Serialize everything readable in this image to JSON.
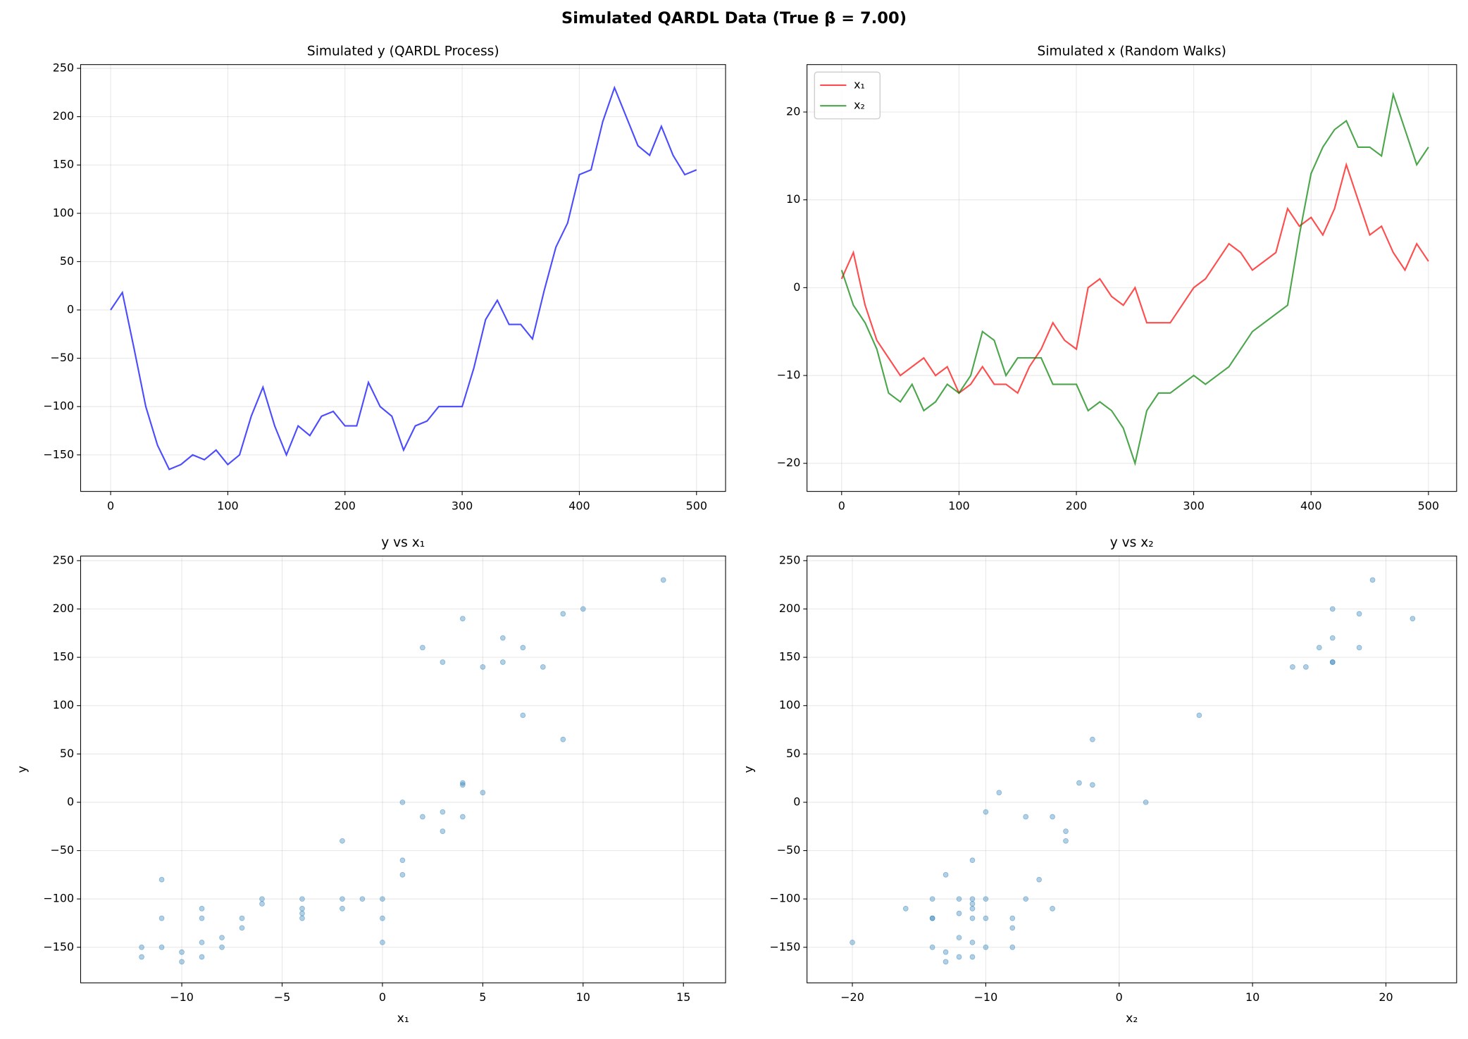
{
  "title": "Simulated QARDL Data (True β = 7.00)",
  "chart_data": [
    {
      "type": "line",
      "title": "Simulated y (QARDL Process)",
      "grid": true,
      "x": [
        0,
        10,
        20,
        30,
        40,
        50,
        60,
        70,
        80,
        90,
        100,
        110,
        120,
        130,
        140,
        150,
        160,
        170,
        180,
        190,
        200,
        210,
        220,
        230,
        240,
        250,
        260,
        270,
        280,
        290,
        300,
        310,
        320,
        330,
        340,
        350,
        360,
        370,
        380,
        390,
        400,
        410,
        420,
        430,
        440,
        450,
        460,
        470,
        480,
        490,
        500
      ],
      "series": [
        {
          "color": "#0000ff",
          "values": [
            0,
            18,
            -40,
            -100,
            -140,
            -165,
            -160,
            -150,
            -155,
            -145,
            -160,
            -150,
            -110,
            -80,
            -120,
            -150,
            -120,
            -130,
            -110,
            -105,
            -120,
            -120,
            -75,
            -100,
            -110,
            -145,
            -120,
            -115,
            -100,
            -100,
            -100,
            -60,
            -10,
            10,
            -15,
            -15,
            -30,
            20,
            65,
            90,
            140,
            145,
            195,
            230,
            200,
            170,
            160,
            190,
            160,
            140,
            145
          ]
        }
      ],
      "xlim": [
        -25.6,
        524.8
      ],
      "ylim": [
        -187.8,
        253.9
      ],
      "xticks": [
        0,
        100,
        200,
        300,
        400,
        500
      ],
      "yticks": [
        {
          "value": -150,
          "label": "−150"
        },
        {
          "value": -100,
          "label": "−100"
        },
        {
          "value": -50,
          "label": "−50"
        },
        0,
        50,
        100,
        150,
        200,
        250
      ]
    },
    {
      "type": "line",
      "title": "Simulated x (Random Walks)",
      "grid": true,
      "legend": "upper left",
      "x": [
        0,
        10,
        20,
        30,
        40,
        50,
        60,
        70,
        80,
        90,
        100,
        110,
        120,
        130,
        140,
        150,
        160,
        170,
        180,
        190,
        200,
        210,
        220,
        230,
        240,
        250,
        260,
        270,
        280,
        290,
        300,
        310,
        320,
        330,
        340,
        350,
        360,
        370,
        380,
        390,
        400,
        410,
        420,
        430,
        440,
        450,
        460,
        470,
        480,
        490,
        500
      ],
      "series": [
        {
          "name": "x₁",
          "color": "#ff0000",
          "values": [
            1,
            4,
            -2,
            -6,
            -8,
            -10,
            -9,
            -8,
            -10,
            -9,
            -12,
            -11,
            -9,
            -11,
            -11,
            -12,
            -9,
            -7,
            -4,
            -6,
            -7,
            0,
            1,
            -1,
            -2,
            0,
            -4,
            -4,
            -4,
            -2,
            0,
            1,
            3,
            5,
            4,
            2,
            3,
            4,
            9,
            7,
            8,
            6,
            9,
            14,
            10,
            6,
            7,
            4,
            2,
            5,
            3
          ]
        },
        {
          "name": "x₂",
          "color": "#008000",
          "values": [
            2,
            -2,
            -4,
            -7,
            -12,
            -13,
            -11,
            -14,
            -13,
            -11,
            -12,
            -10,
            -5,
            -6,
            -10,
            -8,
            -8,
            -8,
            -11,
            -11,
            -11,
            -14,
            -13,
            -14,
            -16,
            -20,
            -14,
            -12,
            -12,
            -11,
            -10,
            -11,
            -10,
            -9,
            -7,
            -5,
            -4,
            -3,
            -2,
            6,
            13,
            16,
            18,
            19,
            16,
            16,
            15,
            22,
            18,
            14,
            16
          ]
        }
      ],
      "xlim": [
        -29.5,
        524
      ],
      "ylim": [
        -23.2,
        25.4
      ],
      "xticks": [
        0,
        100,
        200,
        300,
        400,
        500
      ],
      "yticks": [
        {
          "value": -20,
          "label": "−20"
        },
        {
          "value": -10,
          "label": "−10"
        },
        0,
        10,
        20
      ]
    },
    {
      "type": "scatter",
      "title": "y vs x₁",
      "xlabel": "x₁",
      "ylabel": "y",
      "grid": true,
      "color": "#1f77b4",
      "x": [
        1,
        4,
        -2,
        -6,
        -8,
        -10,
        -9,
        -8,
        -10,
        -9,
        -12,
        -11,
        -9,
        -11,
        -11,
        -12,
        -9,
        -7,
        -4,
        -6,
        -7,
        0,
        1,
        -1,
        -2,
        0,
        -4,
        -4,
        -4,
        -2,
        0,
        1,
        3,
        5,
        4,
        2,
        3,
        4,
        9,
        7,
        8,
        6,
        9,
        14,
        10,
        6,
        7,
        4,
        2,
        5,
        3
      ],
      "values": [
        0,
        18,
        -40,
        -100,
        -140,
        -165,
        -160,
        -150,
        -155,
        -145,
        -160,
        -150,
        -110,
        -80,
        -120,
        -150,
        -120,
        -130,
        -110,
        -105,
        -120,
        -120,
        -75,
        -100,
        -110,
        -145,
        -120,
        -115,
        -100,
        -100,
        -100,
        -60,
        -10,
        10,
        -15,
        -15,
        -30,
        20,
        65,
        90,
        140,
        145,
        195,
        230,
        200,
        170,
        160,
        190,
        160,
        140,
        145
      ],
      "xlim": [
        -15.04,
        17.1
      ],
      "ylim": [
        -186.8,
        254.8
      ],
      "xticks": [
        {
          "value": -10,
          "label": "−10"
        },
        {
          "value": -5,
          "label": "−5"
        },
        0,
        5,
        10,
        15
      ],
      "yticks": [
        {
          "value": -150,
          "label": "−150"
        },
        {
          "value": -100,
          "label": "−100"
        },
        {
          "value": -50,
          "label": "−50"
        },
        0,
        50,
        100,
        150,
        200,
        250
      ]
    },
    {
      "type": "scatter",
      "title": "y vs x₂",
      "xlabel": "x₂",
      "ylabel": "y",
      "grid": true,
      "color": "#1f77b4",
      "x": [
        2,
        -2,
        -4,
        -7,
        -12,
        -13,
        -11,
        -14,
        -13,
        -11,
        -12,
        -10,
        -5,
        -6,
        -10,
        -8,
        -8,
        -8,
        -11,
        -11,
        -11,
        -14,
        -13,
        -14,
        -16,
        -20,
        -14,
        -12,
        -12,
        -11,
        -10,
        -11,
        -10,
        -9,
        -7,
        -5,
        -4,
        -3,
        -2,
        6,
        13,
        16,
        18,
        19,
        16,
        16,
        15,
        22,
        18,
        14,
        16
      ],
      "values": [
        0,
        18,
        -40,
        -100,
        -140,
        -165,
        -160,
        -150,
        -155,
        -145,
        -160,
        -150,
        -110,
        -80,
        -120,
        -150,
        -120,
        -130,
        -110,
        -105,
        -120,
        -120,
        -75,
        -100,
        -110,
        -145,
        -120,
        -115,
        -100,
        -100,
        -100,
        -60,
        -10,
        10,
        -15,
        -15,
        -30,
        20,
        65,
        90,
        140,
        145,
        195,
        230,
        200,
        170,
        160,
        190,
        160,
        140,
        145
      ],
      "xlim": [
        -23.4,
        25.3
      ],
      "ylim": [
        -186.8,
        254.8
      ],
      "xticks": [
        {
          "value": -20,
          "label": "−20"
        },
        {
          "value": -10,
          "label": "−10"
        },
        0,
        10,
        20
      ],
      "yticks": [
        {
          "value": -150,
          "label": "−150"
        },
        {
          "value": -100,
          "label": "−100"
        },
        {
          "value": -50,
          "label": "−50"
        },
        0,
        50,
        100,
        150,
        200,
        250
      ]
    }
  ]
}
